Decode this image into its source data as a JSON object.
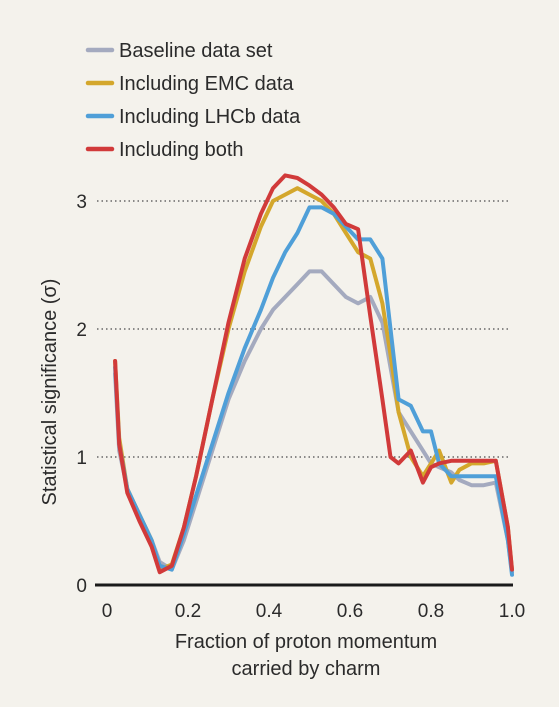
{
  "chart_data": {
    "type": "line",
    "xlabel_lines": [
      "Fraction of proton momentum",
      "carried by charm"
    ],
    "ylabel": "Statistical significance (σ)",
    "xlim": [
      0,
      1.0
    ],
    "ylim": [
      0,
      3.5
    ],
    "xticks": [
      "0",
      "0.2",
      "0.4",
      "0.6",
      "0.8",
      "1.0"
    ],
    "yticks": [
      "0",
      "1",
      "2",
      "3"
    ],
    "grid": "horizontal dotted at 1, 2, 3",
    "legend_position": "top-left",
    "series": [
      {
        "name": "Baseline data set",
        "color": "#a4aabf",
        "x": [
          0.02,
          0.03,
          0.05,
          0.08,
          0.11,
          0.13,
          0.16,
          0.19,
          0.22,
          0.26,
          0.3,
          0.34,
          0.38,
          0.41,
          0.44,
          0.47,
          0.5,
          0.53,
          0.56,
          0.59,
          0.62,
          0.65,
          0.68,
          0.7,
          0.72,
          0.75,
          0.78,
          0.8,
          0.82,
          0.85,
          0.87,
          0.9,
          0.93,
          0.96,
          0.99,
          1.0
        ],
        "y": [
          1.65,
          1.05,
          0.75,
          0.55,
          0.35,
          0.18,
          0.12,
          0.35,
          0.65,
          1.05,
          1.45,
          1.75,
          2.0,
          2.15,
          2.25,
          2.35,
          2.45,
          2.45,
          2.35,
          2.25,
          2.2,
          2.25,
          2.05,
          1.7,
          1.35,
          1.2,
          1.05,
          0.95,
          0.92,
          0.88,
          0.82,
          0.78,
          0.78,
          0.8,
          0.35,
          0.1
        ]
      },
      {
        "name": "Including EMC data",
        "color": "#d4a72c",
        "x": [
          0.02,
          0.03,
          0.05,
          0.08,
          0.11,
          0.13,
          0.16,
          0.19,
          0.22,
          0.26,
          0.3,
          0.34,
          0.38,
          0.41,
          0.44,
          0.47,
          0.5,
          0.53,
          0.56,
          0.59,
          0.62,
          0.65,
          0.68,
          0.7,
          0.72,
          0.75,
          0.78,
          0.8,
          0.82,
          0.85,
          0.87,
          0.9,
          0.93,
          0.96,
          0.99,
          1.0
        ],
        "y": [
          1.75,
          1.15,
          0.75,
          0.55,
          0.35,
          0.12,
          0.16,
          0.45,
          0.85,
          1.45,
          2.0,
          2.45,
          2.8,
          3.0,
          3.05,
          3.1,
          3.05,
          3.0,
          2.9,
          2.75,
          2.6,
          2.55,
          2.2,
          1.8,
          1.35,
          1.0,
          0.85,
          0.95,
          1.05,
          0.8,
          0.9,
          0.95,
          0.95,
          0.97,
          0.45,
          0.12
        ]
      },
      {
        "name": "Including LHCb data",
        "color": "#4f9fd8",
        "x": [
          0.02,
          0.03,
          0.05,
          0.08,
          0.11,
          0.13,
          0.16,
          0.19,
          0.22,
          0.26,
          0.3,
          0.34,
          0.38,
          0.41,
          0.44,
          0.47,
          0.5,
          0.53,
          0.56,
          0.59,
          0.62,
          0.65,
          0.68,
          0.7,
          0.72,
          0.75,
          0.78,
          0.8,
          0.82,
          0.85,
          0.87,
          0.9,
          0.93,
          0.96,
          0.99,
          1.0
        ],
        "y": [
          1.7,
          1.1,
          0.75,
          0.55,
          0.35,
          0.15,
          0.12,
          0.4,
          0.7,
          1.1,
          1.5,
          1.85,
          2.15,
          2.4,
          2.6,
          2.75,
          2.95,
          2.95,
          2.9,
          2.8,
          2.7,
          2.7,
          2.55,
          2.0,
          1.45,
          1.4,
          1.2,
          1.2,
          0.95,
          0.85,
          0.85,
          0.85,
          0.85,
          0.85,
          0.35,
          0.08
        ]
      },
      {
        "name": "Including both",
        "color": "#d13a3a",
        "x": [
          0.02,
          0.03,
          0.05,
          0.08,
          0.11,
          0.13,
          0.16,
          0.19,
          0.22,
          0.26,
          0.3,
          0.34,
          0.38,
          0.41,
          0.44,
          0.47,
          0.5,
          0.53,
          0.56,
          0.59,
          0.62,
          0.65,
          0.68,
          0.7,
          0.72,
          0.75,
          0.78,
          0.8,
          0.82,
          0.85,
          0.87,
          0.9,
          0.93,
          0.96,
          0.99,
          1.0
        ],
        "y": [
          1.75,
          1.1,
          0.72,
          0.5,
          0.3,
          0.1,
          0.15,
          0.45,
          0.85,
          1.45,
          2.05,
          2.55,
          2.9,
          3.1,
          3.2,
          3.18,
          3.12,
          3.05,
          2.95,
          2.82,
          2.78,
          2.1,
          1.45,
          1.0,
          0.95,
          1.05,
          0.8,
          0.92,
          0.95,
          0.97,
          0.97,
          0.97,
          0.97,
          0.97,
          0.45,
          0.12
        ]
      }
    ]
  }
}
